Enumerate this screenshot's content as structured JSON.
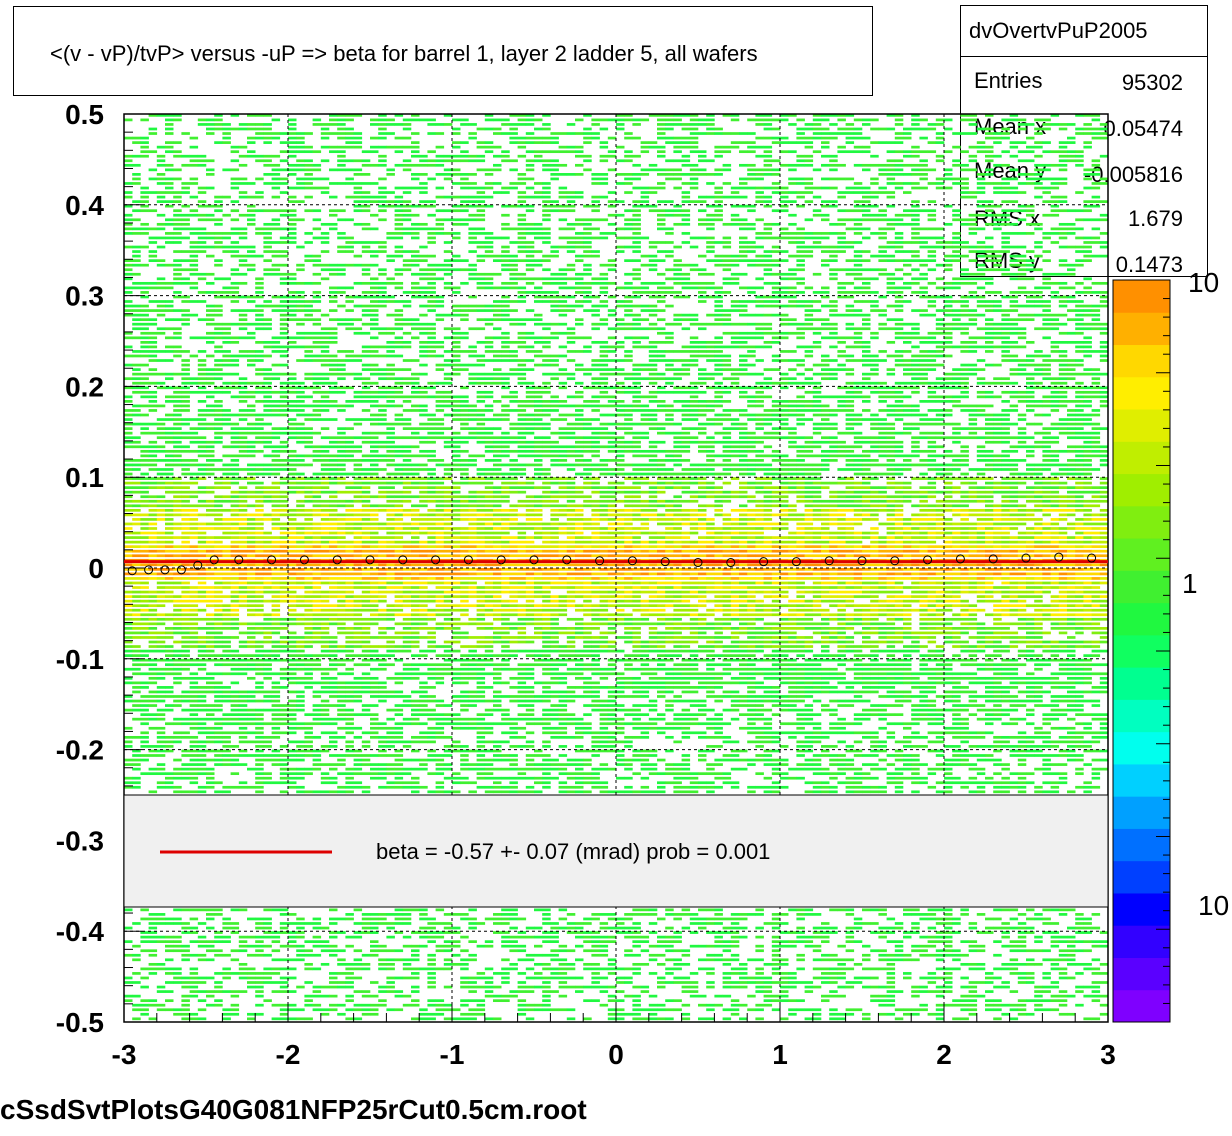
{
  "chart_data": {
    "type": "heatmap",
    "title": "<(v - vP)/tvP> versus  -uP => beta for barrel 1, layer 2 ladder 5, all wafers",
    "histogram_name": "dvOvertvPuP2005",
    "stats": [
      {
        "label": "Entries",
        "value": "95302"
      },
      {
        "label": "Mean x",
        "value": "0.05474"
      },
      {
        "label": "Mean y",
        "value": "-0.005816"
      },
      {
        "label": "RMS x",
        "value": "1.679"
      },
      {
        "label": "RMS y",
        "value": "0.1473"
      }
    ],
    "xlim": [
      -3,
      3
    ],
    "ylim": [
      -0.5,
      0.5
    ],
    "x_ticks": [
      "-3",
      "-2",
      "-1",
      "0",
      "1",
      "2",
      "3"
    ],
    "y_ticks": [
      "0.5",
      "0.4",
      "0.3",
      "0.2",
      "0.1",
      "0",
      "-0.1",
      "-0.2",
      "-0.3",
      "-0.4",
      "-0.5"
    ],
    "z_scale": "log",
    "z_tick_labels": [
      "10",
      "1",
      "10"
    ],
    "grid": true,
    "band_center_y": 0.005,
    "fit_line": {
      "color": "#dd0000",
      "x": [
        -3,
        3
      ],
      "y": [
        0.007,
        0.007
      ]
    },
    "profile_points": {
      "x": [
        -2.95,
        -2.85,
        -2.75,
        -2.65,
        -2.55,
        -2.45,
        -2.3,
        -2.1,
        -1.9,
        -1.7,
        -1.5,
        -1.3,
        -1.1,
        -0.9,
        -0.7,
        -0.5,
        -0.3,
        -0.1,
        0.1,
        0.3,
        0.5,
        0.7,
        0.9,
        1.1,
        1.3,
        1.5,
        1.7,
        1.9,
        2.1,
        2.3,
        2.5,
        2.7,
        2.9
      ],
      "y": [
        -0.003,
        -0.002,
        -0.002,
        -0.002,
        0.003,
        0.009,
        0.009,
        0.009,
        0.009,
        0.009,
        0.009,
        0.009,
        0.009,
        0.009,
        0.009,
        0.009,
        0.009,
        0.008,
        0.008,
        0.007,
        0.006,
        0.006,
        0.007,
        0.007,
        0.008,
        0.008,
        0.008,
        0.009,
        0.01,
        0.01,
        0.011,
        0.012,
        0.011
      ]
    },
    "legend": {
      "label": "beta =   -0.57 +-  0.07 (mrad) prob = 0.001",
      "color": "#dd0000",
      "position": "bottom-center"
    }
  },
  "footer": "cSsdSvtPlotsG40G081NFP25rCut0.5cm.root",
  "palette": [
    "#7f00ff",
    "#5a00ff",
    "#3200ff",
    "#0000ff",
    "#0040ff",
    "#0070ff",
    "#00a0ff",
    "#00d0ff",
    "#00ffee",
    "#00ffc0",
    "#00ff90",
    "#10ff60",
    "#20f840",
    "#40f030",
    "#60f020",
    "#80ee10",
    "#a0ee00",
    "#c0ee00",
    "#e0ee00",
    "#ffee00",
    "#ffd800",
    "#ffb000",
    "#ff9000"
  ]
}
